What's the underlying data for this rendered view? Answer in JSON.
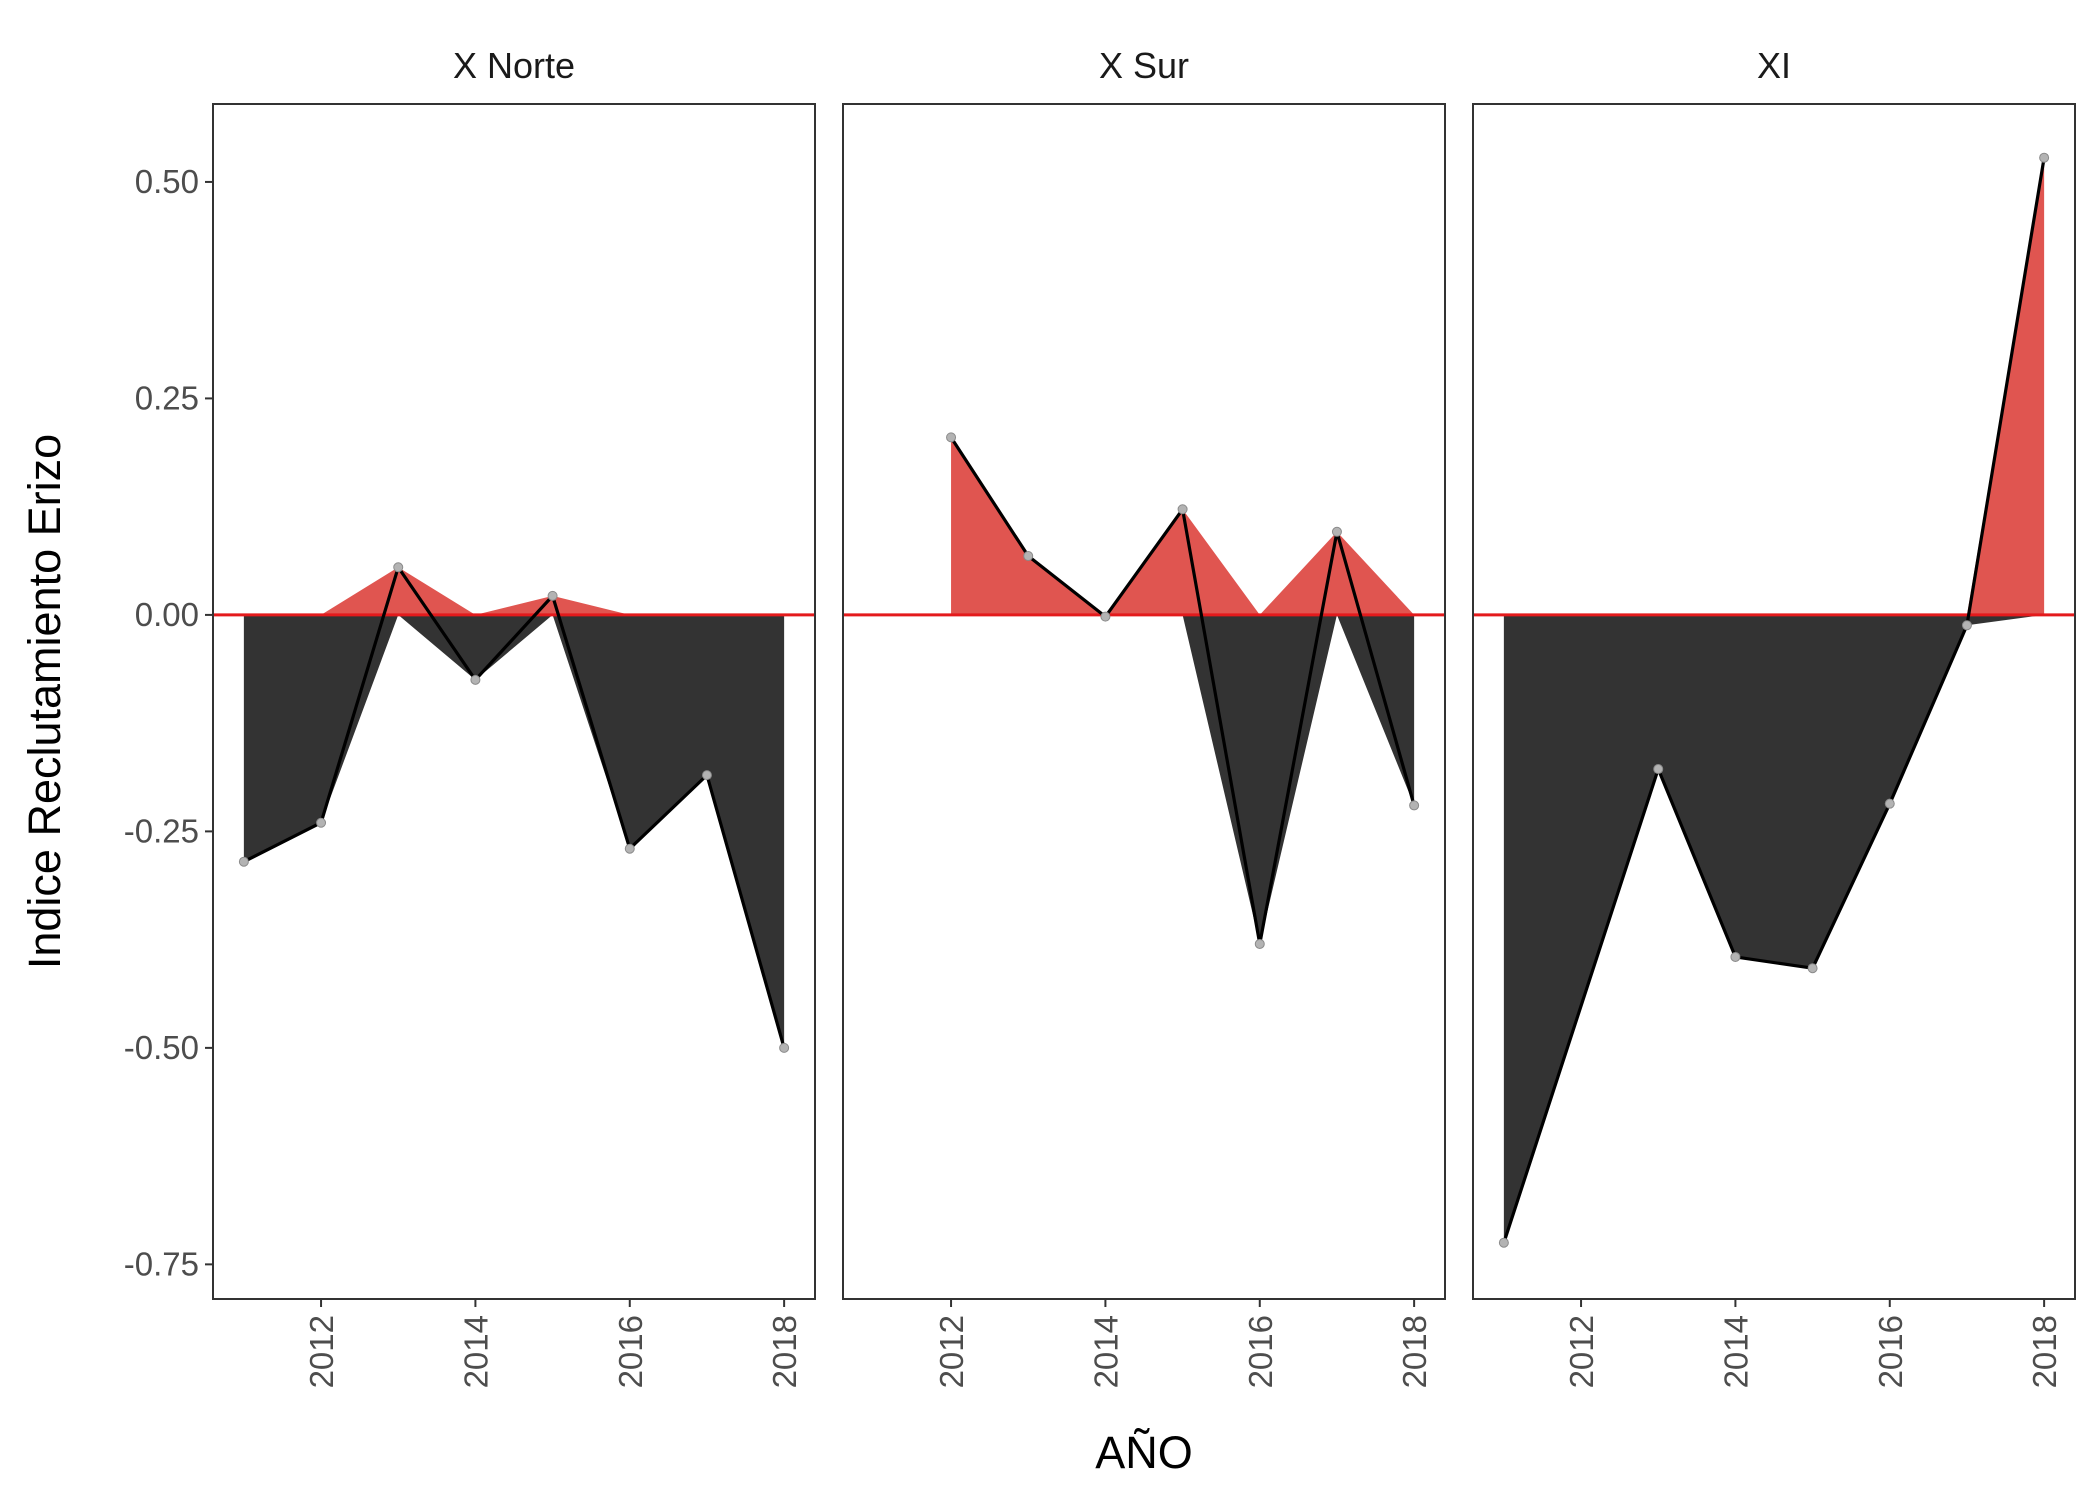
{
  "chart_data": {
    "type": "area",
    "xlabel": "AÑO",
    "ylabel": "Indice Reclutamiento Erizo",
    "ylim": [
      -0.79,
      0.59
    ],
    "xlim": [
      2010.6,
      2018.4
    ],
    "y_ticks": [
      0.5,
      0.25,
      0.0,
      -0.25,
      -0.5,
      -0.75
    ],
    "y_tick_labels": [
      "0.50",
      "0.25",
      "0.00",
      "-0.25",
      "-0.50",
      "-0.75"
    ],
    "x_ticks": [
      2012,
      2014,
      2016,
      2018
    ],
    "x_tick_labels": [
      "2012",
      "2014",
      "2016",
      "2018"
    ],
    "reference_line": 0,
    "grid": false,
    "colors": {
      "positive_fill": "#e05550",
      "negative_fill": "#333333",
      "line": "#000000",
      "zero_line": "#e41a1c",
      "point": "#b3b3b3"
    },
    "panels": [
      {
        "title": "X Norte",
        "x": [
          2011,
          2012,
          2013,
          2014,
          2015,
          2016,
          2017,
          2018
        ],
        "y": [
          -0.285,
          -0.24,
          0.055,
          -0.075,
          0.022,
          -0.27,
          -0.185,
          -0.5
        ],
        "pos_fill": [
          0,
          0,
          0.055,
          0,
          0.022,
          0,
          0,
          0
        ],
        "neg_fill": [
          -0.285,
          -0.24,
          0,
          -0.075,
          0,
          -0.27,
          -0.185,
          -0.5
        ]
      },
      {
        "title": "X Sur",
        "x": [
          2012,
          2013,
          2014,
          2015,
          2016,
          2017,
          2018
        ],
        "y": [
          0.205,
          0.068,
          -0.002,
          0.122,
          -0.38,
          0.096,
          -0.22
        ],
        "pos_fill": [
          0.205,
          0.068,
          0,
          0.122,
          0,
          0.096,
          0
        ],
        "neg_fill": [
          0,
          0,
          0,
          0,
          -0.38,
          0,
          -0.22
        ]
      },
      {
        "title": "XI",
        "x": [
          2011,
          2013,
          2014,
          2015,
          2016,
          2017,
          2018
        ],
        "y": [
          -0.725,
          -0.178,
          -0.395,
          -0.408,
          -0.218,
          -0.012,
          0.528
        ],
        "pos_fill": [
          0,
          0,
          0,
          0,
          0,
          0,
          0.528
        ],
        "neg_fill": [
          -0.725,
          -0.178,
          -0.395,
          -0.408,
          -0.218,
          -0.012,
          0
        ]
      }
    ]
  }
}
